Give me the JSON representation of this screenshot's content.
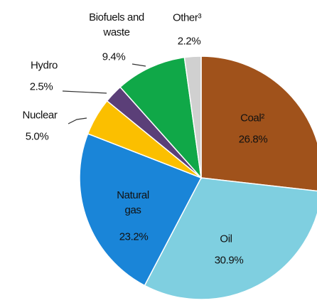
{
  "chart_data": {
    "type": "pie",
    "categories": [
      "Coal²",
      "Oil",
      "Natural gas",
      "Nuclear",
      "Hydro",
      "Biofuels and waste",
      "Other³"
    ],
    "values": [
      26.8,
      30.9,
      23.2,
      5.0,
      2.5,
      9.4,
      2.2
    ],
    "value_labels": [
      "26.8%",
      "30.9%",
      "23.2%",
      "5.0%",
      "2.5%",
      "9.4%",
      "2.2%"
    ],
    "colors": [
      "#a0521b",
      "#7fcfe0",
      "#1a85d8",
      "#fbbf00",
      "#5b3f78",
      "#10a848",
      "#d0d0d0"
    ]
  }
}
